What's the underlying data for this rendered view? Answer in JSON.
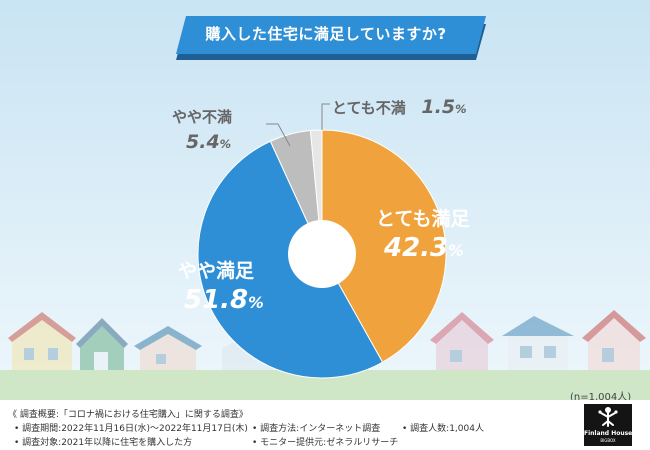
{
  "title": "購入した住宅に満足していますか?",
  "chart_data": {
    "type": "pie",
    "donut": true,
    "start": "top, clockwise",
    "slices": [
      {
        "label": "とても満足",
        "value": 42.3,
        "color": "#F0A33C"
      },
      {
        "label": "やや満足",
        "value": 51.8,
        "color": "#2E8FD6"
      },
      {
        "label": "やや不満",
        "value": 5.4,
        "color": "#BDBDBD"
      },
      {
        "label": "とても不満",
        "value": 1.5,
        "color": "#E6E6E6"
      }
    ],
    "unit": "%",
    "sample_size": "(n=1,004人)"
  },
  "footer": {
    "heading": "《 調査概要:「コロナ禍における住宅購入」に関する調査》",
    "period": "• 調査期間:2022年11月16日(水)〜2022年11月17日(木)",
    "target": "• 調査対象:2021年以降に住宅を購入した方",
    "method": "• 調査方法:インターネット調査",
    "provider": "• モニター提供元:ゼネラルリサーチ",
    "count": "• 調査人数:1,004人"
  },
  "logo": {
    "main": "Finland House",
    "sub": "BIGBOX"
  },
  "colors": {
    "title_banner": "#2E8FD6",
    "banner_shadow": "#1F5F93",
    "sky_top": "#C9E4F3",
    "sky_bottom": "#EEF7FC",
    "ground": "#CFE6C7"
  }
}
